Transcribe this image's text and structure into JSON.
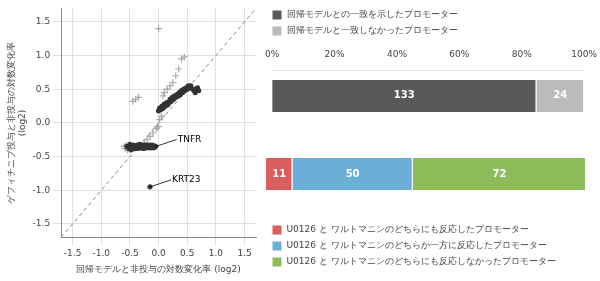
{
  "chart_data": [
    {
      "type": "scatter",
      "xlabel": "回帰モデルと非投与の対数変化率 (log2)",
      "ylabel": [
        "ゲフィチニブ投与と非投与の対数変化率",
        "(log2)"
      ],
      "xlim": [
        -1.7,
        1.7
      ],
      "ylim": [
        -1.7,
        1.7
      ],
      "xticks": [
        -1.5,
        {
          "value": -1.0,
          "label": "-1.0"
        },
        -0.5,
        {
          "value": 0.0,
          "label": "0.0"
        },
        0.5,
        {
          "value": 1.0,
          "label": "1.0"
        },
        1.5
      ],
      "yticks": [
        -1.5,
        {
          "value": -1.0,
          "label": "-1.0"
        },
        -0.5,
        {
          "value": 0.0,
          "label": "0.0"
        },
        0.5,
        {
          "value": 1.0,
          "label": "1.0"
        },
        1.5
      ],
      "grid": true,
      "series": [
        {
          "type": "line",
          "line_style": "dashed",
          "color": "#888888",
          "values": [
            [
              -1.7,
              -1.7
            ],
            [
              1.7,
              1.7
            ]
          ]
        },
        {
          "type": "scatter",
          "marker": "plus",
          "color": "#aaaaaa",
          "values": [
            [
              -0.6,
              -0.35
            ],
            [
              -0.58,
              -0.38
            ],
            [
              -0.56,
              -0.33
            ],
            [
              -0.54,
              -0.4
            ],
            [
              -0.53,
              -0.37
            ],
            [
              -0.04,
              -0.08
            ],
            [
              -0.02,
              -0.06
            ],
            [
              0.0,
              -0.05
            ],
            [
              0.02,
              0.05
            ],
            [
              0.05,
              0.1
            ],
            [
              -0.1,
              -0.15
            ],
            [
              -0.15,
              -0.2
            ],
            [
              -0.2,
              -0.25
            ],
            [
              -0.25,
              -0.3
            ],
            [
              0.08,
              0.4
            ],
            [
              0.1,
              0.45
            ],
            [
              0.15,
              0.5
            ],
            [
              0.2,
              0.55
            ],
            [
              0.25,
              0.6
            ],
            [
              0.3,
              0.7
            ],
            [
              0.35,
              0.8
            ],
            [
              0.4,
              0.95
            ],
            [
              0.45,
              0.98
            ],
            [
              -0.35,
              0.38
            ],
            [
              -0.4,
              0.35
            ],
            [
              -0.45,
              0.32
            ],
            [
              0.0,
              1.4
            ]
          ]
        },
        {
          "type": "scatter",
          "marker": "circle",
          "color": "#333333",
          "values": [
            [
              -0.55,
              -0.35
            ],
            [
              -0.52,
              -0.38
            ],
            [
              -0.5,
              -0.32
            ],
            [
              -0.48,
              -0.4
            ],
            [
              -0.47,
              -0.35
            ],
            [
              -0.45,
              -0.37
            ],
            [
              -0.44,
              -0.33
            ],
            [
              -0.43,
              -0.36
            ],
            [
              -0.42,
              -0.38
            ],
            [
              -0.41,
              -0.34
            ],
            [
              -0.4,
              -0.37
            ],
            [
              -0.39,
              -0.35
            ],
            [
              -0.38,
              -0.36
            ],
            [
              -0.37,
              -0.33
            ],
            [
              -0.36,
              -0.38
            ],
            [
              -0.35,
              -0.34
            ],
            [
              -0.34,
              -0.36
            ],
            [
              -0.33,
              -0.32
            ],
            [
              -0.32,
              -0.35
            ],
            [
              -0.31,
              -0.37
            ],
            [
              -0.3,
              -0.33
            ],
            [
              -0.29,
              -0.36
            ],
            [
              -0.28,
              -0.34
            ],
            [
              -0.27,
              -0.35
            ],
            [
              -0.26,
              -0.38
            ],
            [
              -0.25,
              -0.33
            ],
            [
              -0.24,
              -0.37
            ],
            [
              -0.23,
              -0.34
            ],
            [
              -0.22,
              -0.36
            ],
            [
              -0.21,
              -0.33
            ],
            [
              -0.2,
              -0.35
            ],
            [
              -0.19,
              -0.37
            ],
            [
              -0.18,
              -0.34
            ],
            [
              -0.17,
              -0.36
            ],
            [
              -0.16,
              -0.33
            ],
            [
              -0.15,
              -0.35
            ],
            [
              -0.14,
              -0.37
            ],
            [
              -0.13,
              -0.34
            ],
            [
              -0.12,
              -0.36
            ],
            [
              -0.11,
              -0.33
            ],
            [
              -0.1,
              -0.35
            ],
            [
              -0.09,
              -0.37
            ],
            [
              -0.08,
              -0.34
            ],
            [
              -0.07,
              -0.36
            ],
            [
              0.0,
              0.18
            ],
            [
              0.02,
              0.22
            ],
            [
              0.04,
              0.2
            ],
            [
              0.06,
              0.25
            ],
            [
              0.08,
              0.22
            ],
            [
              0.1,
              0.28
            ],
            [
              0.12,
              0.25
            ],
            [
              0.14,
              0.3
            ],
            [
              0.16,
              0.27
            ],
            [
              0.18,
              0.3
            ],
            [
              0.2,
              0.35
            ],
            [
              0.22,
              0.32
            ],
            [
              0.24,
              0.38
            ],
            [
              0.26,
              0.35
            ],
            [
              0.28,
              0.4
            ],
            [
              0.3,
              0.38
            ],
            [
              0.32,
              0.42
            ],
            [
              0.34,
              0.4
            ],
            [
              0.36,
              0.45
            ],
            [
              0.38,
              0.42
            ],
            [
              0.4,
              0.48
            ],
            [
              0.42,
              0.45
            ],
            [
              0.44,
              0.5
            ],
            [
              0.46,
              0.48
            ],
            [
              0.48,
              0.52
            ],
            [
              0.5,
              0.5
            ],
            [
              0.52,
              0.55
            ],
            [
              0.54,
              0.52
            ],
            [
              0.56,
              0.55
            ],
            [
              0.6,
              0.5
            ],
            [
              0.62,
              0.48
            ],
            [
              0.64,
              0.45
            ],
            [
              0.65,
              0.5
            ],
            [
              0.68,
              0.52
            ],
            [
              0.7,
              0.48
            ]
          ]
        }
      ],
      "annotations": [
        {
          "text": "TNFR",
          "x": -0.05,
          "y": -0.35,
          "color": "#333333"
        },
        {
          "text": "KRT23",
          "x": -0.15,
          "y": -0.95,
          "color": "#333333"
        }
      ]
    },
    {
      "type": "bar",
      "orientation": "horizontal",
      "stacked": true,
      "legend": "top",
      "tick_labels": "x",
      "categories": [
        null
      ],
      "xlim": [
        0,
        100
      ],
      "xticks": [
        {
          "value": 0,
          "label": "0%"
        },
        {
          "value": 20,
          "label": "20%"
        },
        {
          "value": 40,
          "label": "40%"
        },
        {
          "value": 60,
          "label": "60%"
        },
        {
          "value": 80,
          "label": "80%"
        },
        {
          "value": 100,
          "label": "100%"
        }
      ],
      "series": [
        {
          "name": "回帰モデルとの一致を示したプロモーター",
          "color": "#595959",
          "values": [
            84.71337579617835
          ],
          "counts": [
            133
          ]
        },
        {
          "name": "回帰モデルと一致しなかったプロモーター",
          "color": "#bbbbbb",
          "values": [
            15.286624203821656
          ],
          "counts": [
            24
          ]
        }
      ]
    },
    {
      "type": "bar",
      "orientation": "horizontal",
      "stacked": true,
      "legend": "bottom",
      "tick_labels": false,
      "categories": [
        null
      ],
      "xlim": [
        0,
        100
      ],
      "series": [
        {
          "name": "U0126 と ワルトマニンのどちらにも反応したプロモーター",
          "color": "#d95f5f",
          "values": [
            8.270676691729323
          ],
          "counts": [
            11
          ]
        },
        {
          "name": "U0126 と ワルトマニンのどちらか一方に反応したプロモーター",
          "color": "#6baed6",
          "values": [
            37.59398496240601
          ],
          "counts": [
            50
          ]
        },
        {
          "name": "U0126 と ワルトマニンのどちらにも反応しなかったプロモーター",
          "color": "#8fbc5a",
          "values": [
            54.13533834586466
          ],
          "counts": [
            72
          ]
        }
      ]
    }
  ]
}
